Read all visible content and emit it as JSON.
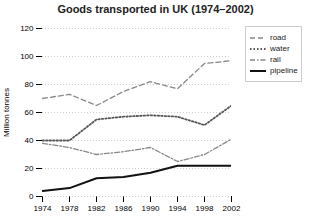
{
  "chart_data": {
    "type": "line",
    "title": "Goods transported in UK (1974–2002)",
    "ylabel": "Million tonnes",
    "x": [
      1974,
      1978,
      1982,
      1986,
      1990,
      1994,
      1998,
      2002
    ],
    "series": [
      {
        "name": "road",
        "color": "#888888",
        "line_style": "dashed",
        "values": [
          70,
          73,
          65,
          75,
          82,
          77,
          95,
          97
        ]
      },
      {
        "name": "water",
        "color": "#555555",
        "line_style": "dotted",
        "values": [
          40,
          40,
          55,
          57,
          58,
          57,
          51,
          65
        ]
      },
      {
        "name": "rail",
        "color": "#888888",
        "line_style": "dashdot",
        "values": [
          38,
          35,
          30,
          32,
          35,
          25,
          30,
          41
        ]
      },
      {
        "name": "pipeline",
        "color": "#111111",
        "line_style": "solid",
        "values": [
          4,
          6,
          13,
          14,
          17,
          22,
          22,
          22
        ]
      }
    ],
    "xlim": [
      1974,
      2002
    ],
    "xticks": [
      1974,
      1978,
      1982,
      1986,
      1990,
      1994,
      1998,
      2002
    ],
    "ylim": [
      0,
      120
    ],
    "yticks": [
      0,
      20,
      40,
      60,
      80,
      100,
      120
    ],
    "grid": true,
    "legend": "right"
  }
}
